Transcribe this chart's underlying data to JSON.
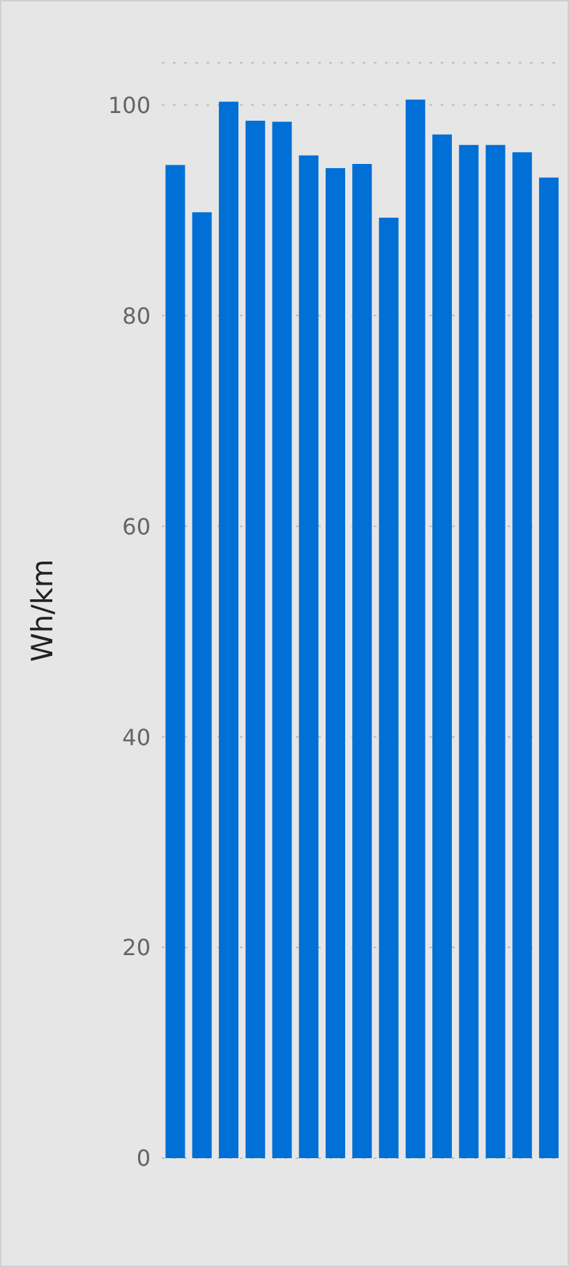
{
  "chart_data": {
    "type": "bar",
    "ylabel": "Wh/km",
    "categories": [
      null,
      null,
      null,
      null,
      null,
      null,
      null,
      null,
      null,
      null,
      null,
      null,
      null,
      null,
      null
    ],
    "values": [
      94.3,
      89.8,
      100.3,
      98.5,
      98.4,
      95.2,
      94.0,
      94.4,
      89.3,
      100.5,
      97.2,
      96.2,
      96.2,
      95.5,
      93.1
    ],
    "color": "#006fd6",
    "ylim": [
      0,
      104
    ],
    "yticks": [
      0,
      20,
      40,
      60,
      80,
      100
    ],
    "grid": "y",
    "legend": false
  }
}
